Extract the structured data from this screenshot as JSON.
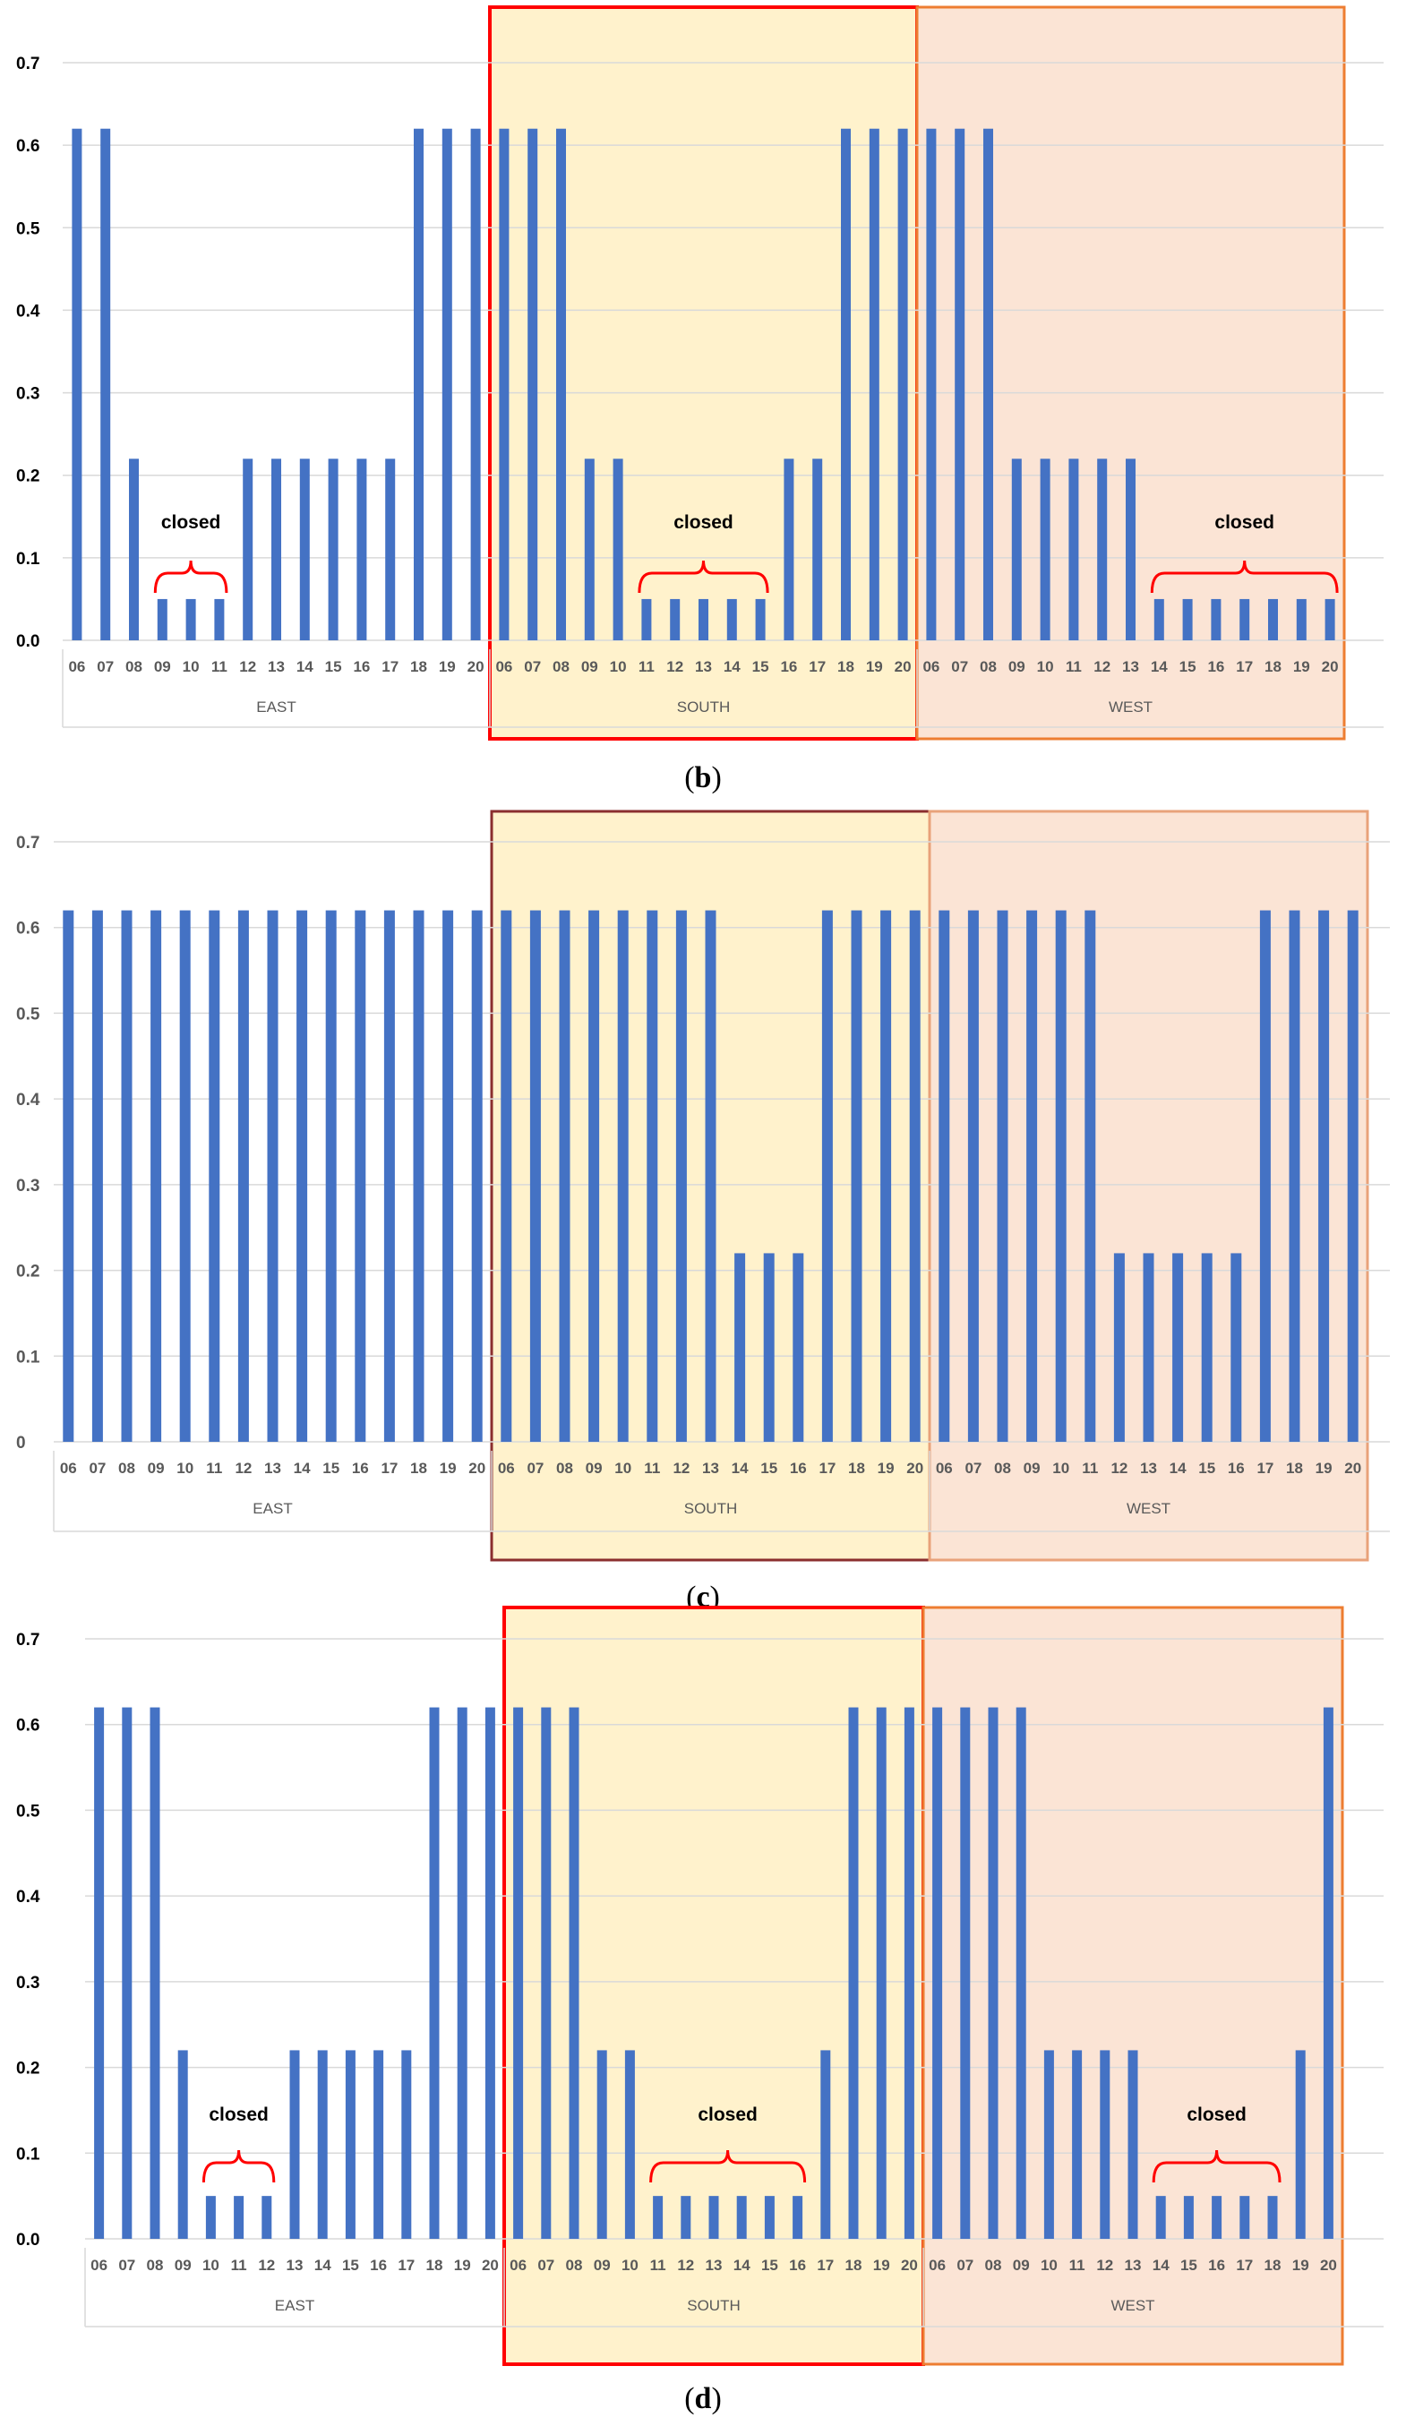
{
  "colors": {
    "bar": "#4472c4",
    "south_fill": "#fff2cc",
    "west_fill": "#fbe4d5",
    "south_border_b": "#ff0000",
    "west_border": "#ed7d31",
    "south_border_c": "#8b2e2e",
    "west_border_c": "#e8a27a",
    "bracket": "#ff0000",
    "grid": "#d9d9d9",
    "axis_text": "#595959"
  },
  "chart_data": [
    {
      "id": "b",
      "type": "bar",
      "panel_label": "b",
      "ylim": [
        0,
        0.7
      ],
      "yticks": [
        "0.0",
        "0.1",
        "0.2",
        "0.3",
        "0.4",
        "0.5",
        "0.6",
        "0.7"
      ],
      "groups": [
        "EAST",
        "SOUTH",
        "WEST"
      ],
      "hours": [
        "06",
        "07",
        "08",
        "09",
        "10",
        "11",
        "12",
        "13",
        "14",
        "15",
        "16",
        "17",
        "18",
        "19",
        "20"
      ],
      "series": [
        {
          "name": "EAST",
          "values": [
            0.62,
            0.62,
            0.22,
            0.05,
            0.05,
            0.05,
            0.22,
            0.22,
            0.22,
            0.22,
            0.22,
            0.22,
            0.62,
            0.62,
            0.62
          ]
        },
        {
          "name": "SOUTH",
          "values": [
            0.62,
            0.62,
            0.62,
            0.22,
            0.22,
            0.05,
            0.05,
            0.05,
            0.05,
            0.05,
            0.22,
            0.22,
            0.62,
            0.62,
            0.62
          ]
        },
        {
          "name": "WEST",
          "values": [
            0.62,
            0.62,
            0.62,
            0.22,
            0.22,
            0.22,
            0.22,
            0.22,
            0.05,
            0.05,
            0.05,
            0.05,
            0.05,
            0.05,
            0.05
          ]
        }
      ],
      "annotations": [
        {
          "text": "closed",
          "group": 0,
          "from": 3,
          "to": 5
        },
        {
          "text": "closed",
          "group": 1,
          "from": 5,
          "to": 9
        },
        {
          "text": "closed",
          "group": 2,
          "from": 8,
          "to": 14
        }
      ]
    },
    {
      "id": "c",
      "type": "bar",
      "panel_label": "c",
      "ylim": [
        0,
        0.7
      ],
      "yticks": [
        "0",
        "0.1",
        "0.2",
        "0.3",
        "0.4",
        "0.5",
        "0.6",
        "0.7"
      ],
      "groups": [
        "EAST",
        "SOUTH",
        "WEST"
      ],
      "hours": [
        "06",
        "07",
        "08",
        "09",
        "10",
        "11",
        "12",
        "13",
        "14",
        "15",
        "16",
        "17",
        "18",
        "19",
        "20"
      ],
      "series": [
        {
          "name": "EAST",
          "values": [
            0.62,
            0.62,
            0.62,
            0.62,
            0.62,
            0.62,
            0.62,
            0.62,
            0.62,
            0.62,
            0.62,
            0.62,
            0.62,
            0.62,
            0.62
          ]
        },
        {
          "name": "SOUTH",
          "values": [
            0.62,
            0.62,
            0.62,
            0.62,
            0.62,
            0.62,
            0.62,
            0.62,
            0.22,
            0.22,
            0.22,
            0.62,
            0.62,
            0.62,
            0.62
          ]
        },
        {
          "name": "WEST",
          "values": [
            0.62,
            0.62,
            0.62,
            0.62,
            0.62,
            0.62,
            0.22,
            0.22,
            0.22,
            0.22,
            0.22,
            0.62,
            0.62,
            0.62,
            0.62
          ]
        }
      ],
      "annotations": []
    },
    {
      "id": "d",
      "type": "bar",
      "panel_label": "d",
      "ylim": [
        0,
        0.7
      ],
      "yticks": [
        "0.0",
        "0.1",
        "0.2",
        "0.3",
        "0.4",
        "0.5",
        "0.6",
        "0.7"
      ],
      "groups": [
        "EAST",
        "SOUTH",
        "WEST"
      ],
      "hours": [
        "06",
        "07",
        "08",
        "09",
        "10",
        "11",
        "12",
        "13",
        "14",
        "15",
        "16",
        "17",
        "18",
        "19",
        "20"
      ],
      "series": [
        {
          "name": "EAST",
          "values": [
            0.62,
            0.62,
            0.62,
            0.22,
            0.05,
            0.05,
            0.05,
            0.22,
            0.22,
            0.22,
            0.22,
            0.22,
            0.62,
            0.62,
            0.62
          ]
        },
        {
          "name": "SOUTH",
          "values": [
            0.62,
            0.62,
            0.62,
            0.22,
            0.22,
            0.05,
            0.05,
            0.05,
            0.05,
            0.05,
            0.05,
            0.22,
            0.62,
            0.62,
            0.62
          ]
        },
        {
          "name": "WEST",
          "values": [
            0.62,
            0.62,
            0.62,
            0.62,
            0.22,
            0.22,
            0.22,
            0.22,
            0.05,
            0.05,
            0.05,
            0.05,
            0.05,
            0.22,
            0.62
          ]
        }
      ],
      "annotations": [
        {
          "text": "closed",
          "group": 0,
          "from": 4,
          "to": 6
        },
        {
          "text": "closed",
          "group": 1,
          "from": 5,
          "to": 10
        },
        {
          "text": "closed",
          "group": 2,
          "from": 8,
          "to": 12
        }
      ]
    }
  ]
}
